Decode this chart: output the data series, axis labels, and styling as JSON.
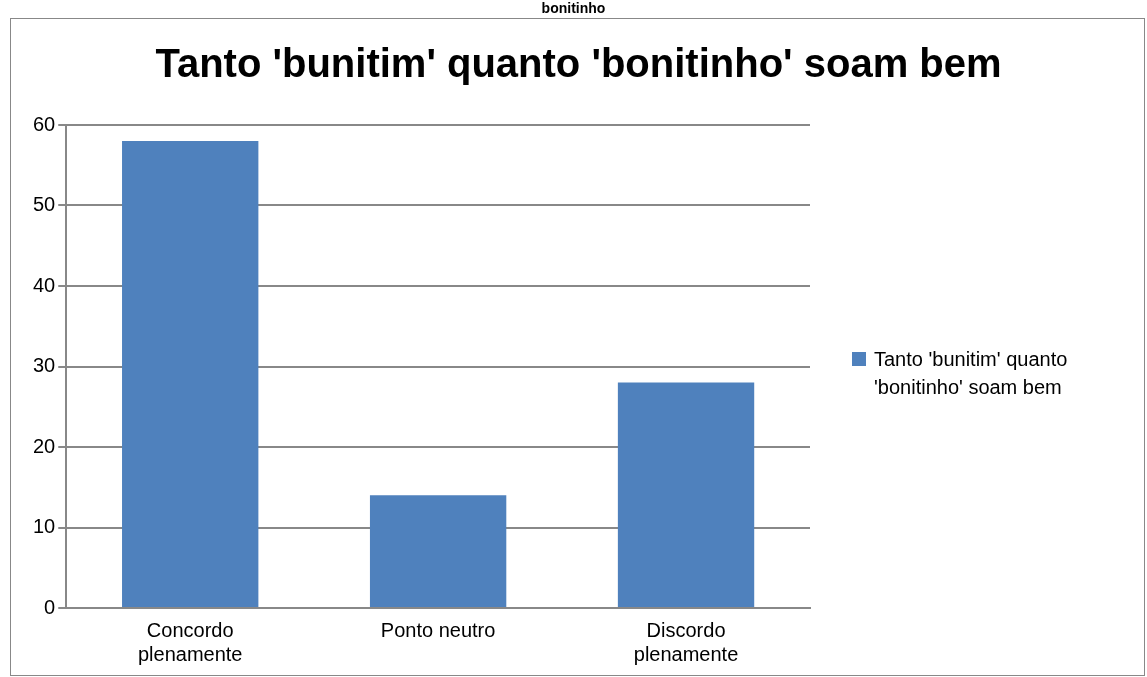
{
  "chart_data": {
    "type": "bar",
    "title": "Tanto 'bunitim' quanto 'bonitinho' soam bem",
    "annotations": [
      "bonitinho"
    ],
    "categories": [
      "Concordo plenamente",
      "Ponto neutro",
      "Discordo plenamente"
    ],
    "series": [
      {
        "name": "Tanto 'bunitim' quanto 'bonitinho' soam bem",
        "color": "#4f81bd",
        "values": [
          58,
          14,
          28
        ]
      }
    ],
    "ylim": [
      0,
      60
    ],
    "yticks": [
      0,
      10,
      20,
      30,
      40,
      50,
      60
    ],
    "grid": "y",
    "legend": "right"
  }
}
